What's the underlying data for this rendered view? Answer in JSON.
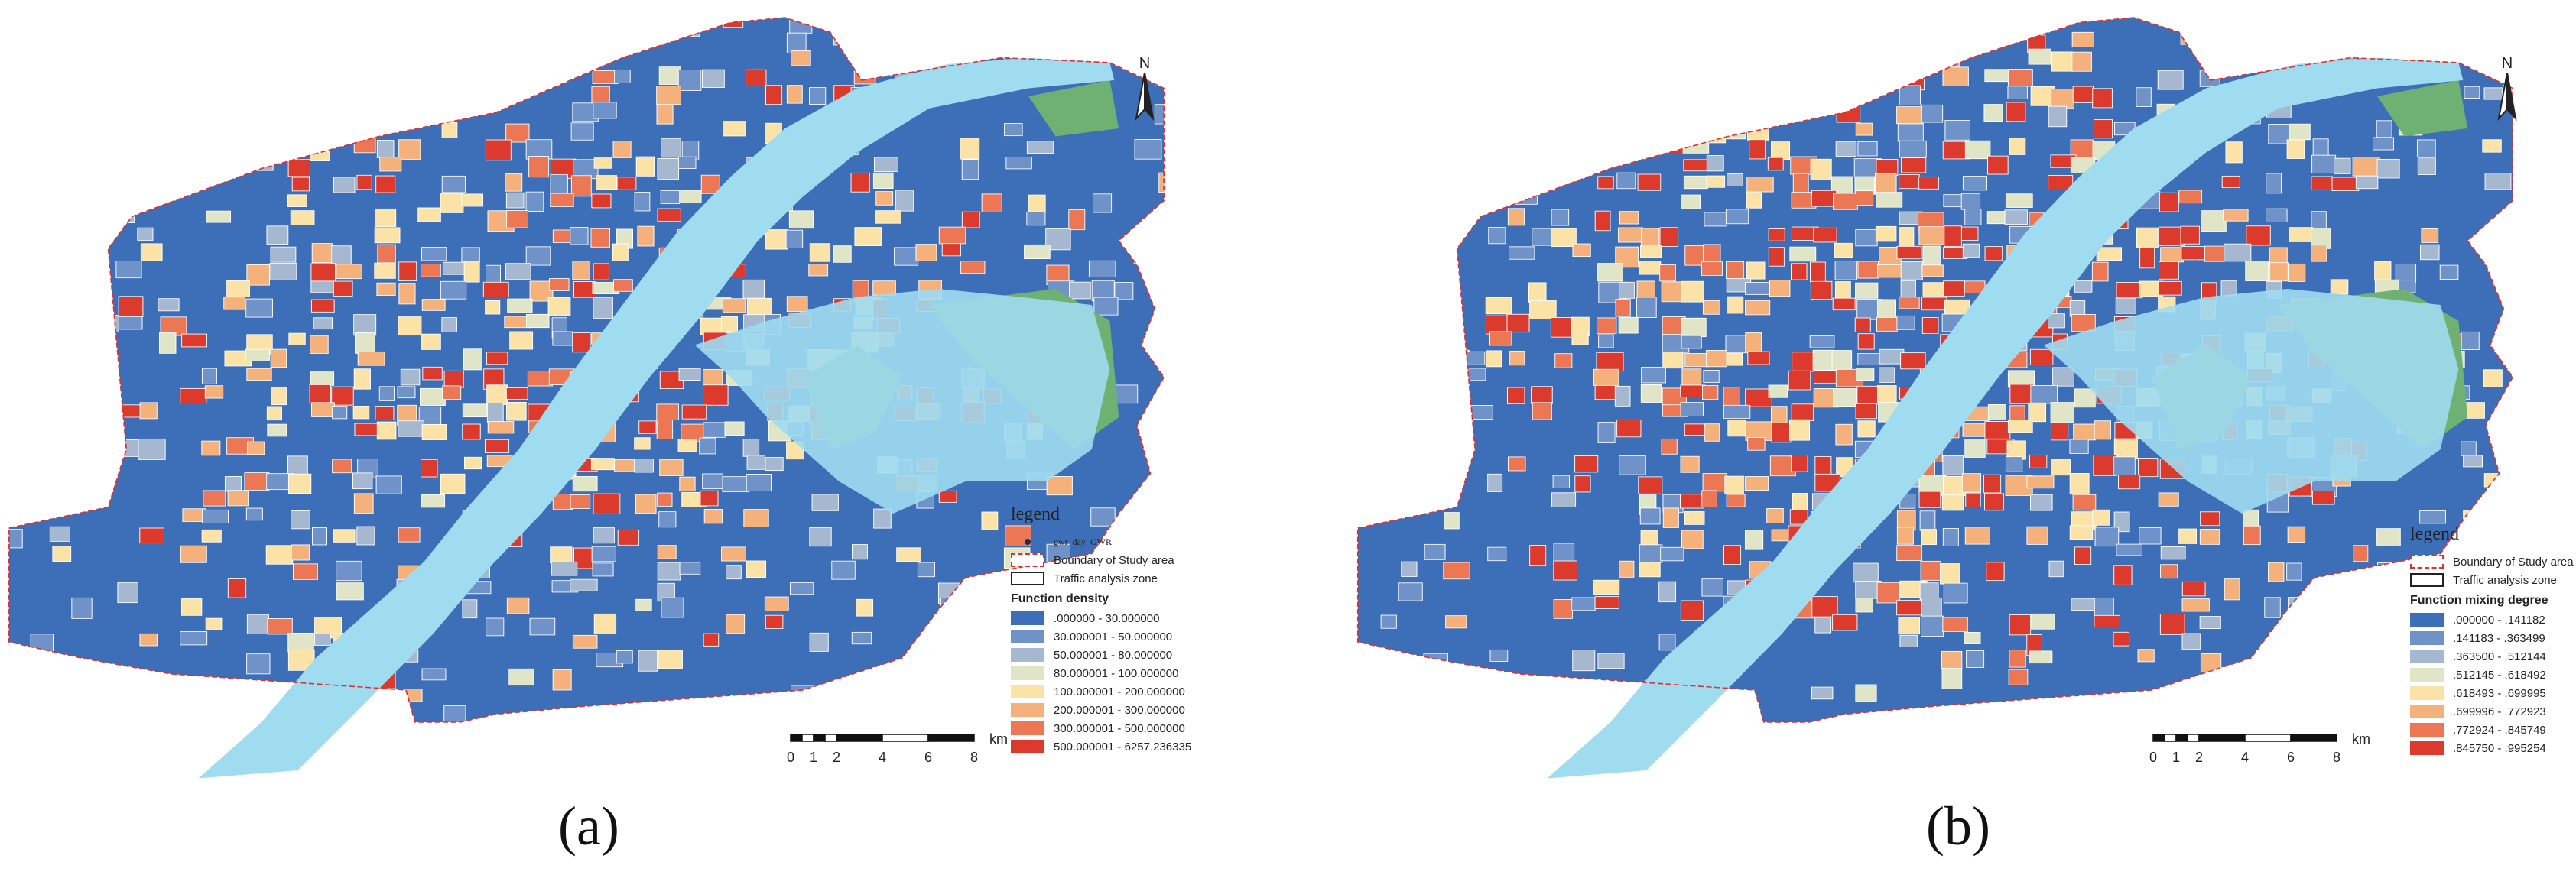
{
  "figure": {
    "panels": [
      {
        "id": "a",
        "caption": "(a)",
        "north_label": "N",
        "legend": {
          "title": "legend",
          "point_layer": "gwr_day_GWR",
          "boundary_label": "Boundary of Study area",
          "zone_label": "Traffic analysis zone",
          "variable": "Function density",
          "classes": [
            {
              "label": ".000000 - 30.000000",
              "color": "#3d6fb8"
            },
            {
              "label": "30.000001 - 50.000000",
              "color": "#6f93c8"
            },
            {
              "label": "50.000001 - 80.000000",
              "color": "#a5b8cf"
            },
            {
              "label": "80.000001 - 100.000000",
              "color": "#dfe5c6"
            },
            {
              "label": "100.000001 - 200.000000",
              "color": "#fbe2a7"
            },
            {
              "label": "200.000001 - 300.000000",
              "color": "#f5b17c"
            },
            {
              "label": "300.000001 - 500.000000",
              "color": "#ec7755"
            },
            {
              "label": "500.000001 - 6257.236335",
              "color": "#dd3a2e"
            }
          ]
        },
        "scale": {
          "labels": [
            "0",
            "1",
            "2",
            "4",
            "6",
            "8"
          ],
          "unit": "km"
        }
      },
      {
        "id": "b",
        "caption": "(b)",
        "north_label": "N",
        "legend": {
          "title": "legend",
          "boundary_label": "Boundary of Study area",
          "zone_label": "Traffic analysis zone",
          "variable": "Function mixing degree",
          "classes": [
            {
              "label": ".000000 - .141182",
              "color": "#3d6fb8"
            },
            {
              "label": ".141183 - .363499",
              "color": "#6f93c8"
            },
            {
              "label": ".363500 - .512144",
              "color": "#a5b8cf"
            },
            {
              "label": ".512145 - .618492",
              "color": "#dfe5c6"
            },
            {
              "label": ".618493 - .699995",
              "color": "#fbe2a7"
            },
            {
              "label": ".699996 - .772923",
              "color": "#f5b17c"
            },
            {
              "label": ".772924 - .845749",
              "color": "#ec7755"
            },
            {
              "label": ".845750 - .995254",
              "color": "#dd3a2e"
            }
          ]
        },
        "scale": {
          "labels": [
            "0",
            "1",
            "2",
            "4",
            "6",
            "8"
          ],
          "unit": "km"
        }
      }
    ],
    "colors": {
      "water": "#9fdcf0",
      "green": "#6fb073",
      "boundary": "#e03030"
    }
  }
}
